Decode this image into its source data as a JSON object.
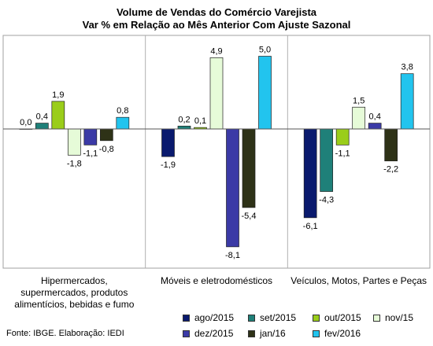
{
  "chart_data": {
    "type": "bar",
    "title": "Volume de Vendas do Comércio Varejista",
    "subtitle": "Var % em Relação ao Mês Anterior Com Ajuste Sazonal",
    "categories": [
      "Hipermercados, supermercados, produtos alimentícios, bebidas e fumo",
      "Móveis e eletrodomésticos",
      "Veículos, Motos, Partes e Peças"
    ],
    "category_lines": [
      [
        "Hipermercados,",
        "supermercados, produtos",
        "alimentícios, bebidas e fumo"
      ],
      [
        "Móveis e eletrodomésticos"
      ],
      [
        "Veículos, Motos, Partes e Peças"
      ]
    ],
    "series": [
      {
        "name": "ago/2015",
        "color": "#0a1a6e",
        "values": [
          0.0,
          -1.9,
          -6.1
        ]
      },
      {
        "name": "set/2015",
        "color": "#1f8079",
        "values": [
          0.4,
          0.2,
          -4.3
        ]
      },
      {
        "name": "out/2015",
        "color": "#9acd1a",
        "values": [
          1.9,
          0.1,
          -1.1
        ]
      },
      {
        "name": "nov/15",
        "color": "#e6fbd8",
        "values": [
          -1.8,
          4.9,
          1.5
        ]
      },
      {
        "name": "dez/2015",
        "color": "#3b3aa6",
        "values": [
          -1.1,
          -8.1,
          0.4
        ]
      },
      {
        "name": "jan/16",
        "color": "#2e3217",
        "values": [
          -0.8,
          -5.4,
          -2.2
        ]
      },
      {
        "name": "fev/2016",
        "color": "#22c4ee",
        "values": [
          0.8,
          5.0,
          3.8
        ]
      }
    ],
    "data_labels": [
      [
        "0,0",
        "0,4",
        "1,9",
        "-1,8",
        "-1,1",
        "-0,8",
        "0,8"
      ],
      [
        "-1,9",
        "0,2",
        "0,1",
        "4,9",
        "-8,1",
        "-5,4",
        "5,0"
      ],
      [
        "-6,1",
        "-4,3",
        "-1,1",
        "1,5",
        "0,4",
        "-2,2",
        "3,8"
      ]
    ],
    "ylim": [
      -9.5,
      5.9
    ],
    "grid": false,
    "legend_position": "bottom-right"
  },
  "source": "Fonte: IBGE. Elaboração: IEDI"
}
